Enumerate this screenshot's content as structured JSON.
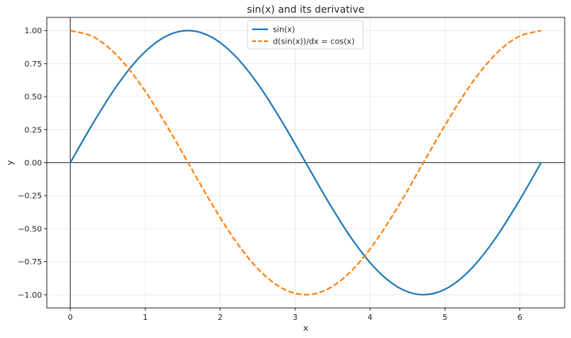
{
  "chart_data": {
    "type": "line",
    "title": "sin(x) and its derivative",
    "xlabel": "x",
    "ylabel": "y",
    "xlim": [
      -0.314,
      6.597
    ],
    "ylim": [
      -1.1,
      1.1
    ],
    "xticks": [
      0,
      1,
      2,
      3,
      4,
      5,
      6
    ],
    "xtick_labels": [
      "0",
      "1",
      "2",
      "3",
      "4",
      "5",
      "6"
    ],
    "yticks": [
      -1.0,
      -0.75,
      -0.5,
      -0.25,
      0.0,
      0.25,
      0.5,
      0.75,
      1.0
    ],
    "ytick_labels": [
      "−1.00",
      "−0.75",
      "−0.50",
      "−0.25",
      "0.00",
      "0.25",
      "0.50",
      "0.75",
      "1.00"
    ],
    "grid": true,
    "legend_position": "top-center",
    "reference_lines": {
      "x": 0,
      "y": 0
    },
    "x": [
      0,
      0.314,
      0.628,
      0.942,
      1.257,
      1.571,
      1.885,
      2.199,
      2.513,
      2.827,
      3.142,
      3.456,
      3.77,
      4.084,
      4.398,
      4.712,
      5.027,
      5.341,
      5.655,
      5.969,
      6.283
    ],
    "series": [
      {
        "name": "sin(x)",
        "color": "#1f77b4",
        "style": "solid",
        "values": [
          0,
          0.309,
          0.588,
          0.809,
          0.951,
          1.0,
          0.951,
          0.809,
          0.588,
          0.309,
          0.0,
          -0.309,
          -0.588,
          -0.809,
          -0.951,
          -1.0,
          -0.951,
          -0.809,
          -0.588,
          -0.309,
          0.0
        ]
      },
      {
        "name": "d(sin(x))/dx = cos(x)",
        "color": "#ff7f0e",
        "style": "dashed",
        "values": [
          1.0,
          0.951,
          0.809,
          0.588,
          0.309,
          0.0,
          -0.309,
          -0.588,
          -0.809,
          -0.951,
          -1.0,
          -0.951,
          -0.809,
          -0.588,
          -0.309,
          0.0,
          0.309,
          0.588,
          0.809,
          0.951,
          1.0
        ]
      }
    ]
  }
}
